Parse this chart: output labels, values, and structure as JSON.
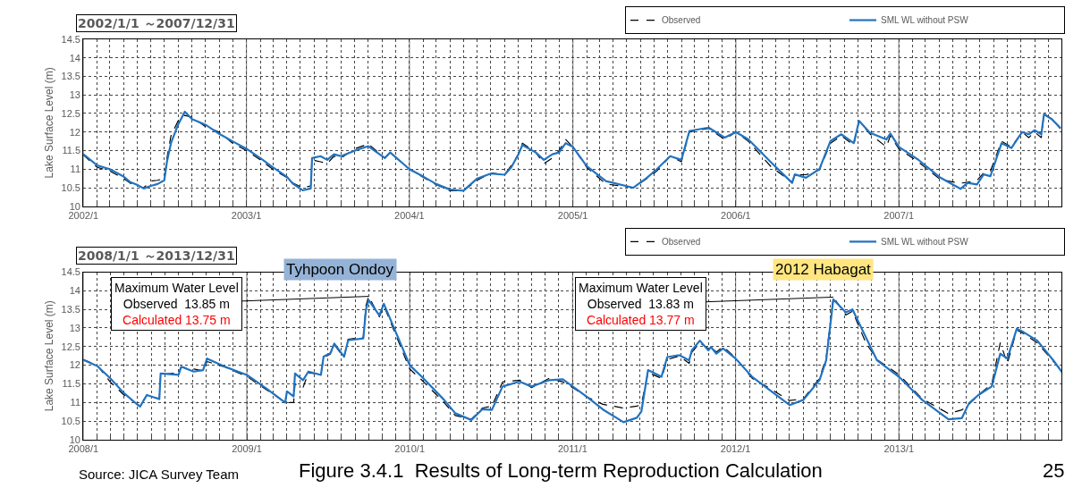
{
  "chart_data": [
    {
      "type": "line",
      "title": "2002/1/1 ～2007/12/31",
      "ylabel": "Lake Surface Level (m)",
      "xlim": [
        "2002-01-01",
        "2008-01-01"
      ],
      "ylim": [
        10,
        14.5
      ],
      "yticks": [
        10,
        10.5,
        11,
        11.5,
        12,
        12.5,
        13,
        13.5,
        14,
        14.5
      ],
      "grid": true,
      "legend": "top right",
      "marker": "none",
      "xticks": [
        {
          "value": "2002-01-01",
          "label": "2002/1"
        },
        {
          "value": "2002-02-01",
          "label": null
        },
        {
          "value": "2002-03-01",
          "label": null
        },
        {
          "value": "2002-04-01",
          "label": null
        },
        {
          "value": "2002-05-01",
          "label": null
        },
        {
          "value": "2002-06-01",
          "label": null
        },
        {
          "value": "2002-07-01",
          "label": null
        },
        {
          "value": "2002-08-01",
          "label": null
        },
        {
          "value": "2002-09-01",
          "label": null
        },
        {
          "value": "2002-10-01",
          "label": null
        },
        {
          "value": "2002-11-01",
          "label": null
        },
        {
          "value": "2002-12-01",
          "label": null
        },
        {
          "value": "2003-01-01",
          "label": "2003/1"
        },
        {
          "value": "2003-02-01",
          "label": null
        },
        {
          "value": "2003-03-01",
          "label": null
        },
        {
          "value": "2003-04-01",
          "label": null
        },
        {
          "value": "2003-05-01",
          "label": null
        },
        {
          "value": "2003-06-01",
          "label": null
        },
        {
          "value": "2003-07-01",
          "label": null
        },
        {
          "value": "2003-08-01",
          "label": null
        },
        {
          "value": "2003-09-01",
          "label": null
        },
        {
          "value": "2003-10-01",
          "label": null
        },
        {
          "value": "2003-11-01",
          "label": null
        },
        {
          "value": "2003-12-01",
          "label": null
        },
        {
          "value": "2004-01-01",
          "label": "2004/1"
        },
        {
          "value": "2004-02-01",
          "label": null
        },
        {
          "value": "2004-03-01",
          "label": null
        },
        {
          "value": "2004-04-01",
          "label": null
        },
        {
          "value": "2004-05-01",
          "label": null
        },
        {
          "value": "2004-06-01",
          "label": null
        },
        {
          "value": "2004-07-01",
          "label": null
        },
        {
          "value": "2004-08-01",
          "label": null
        },
        {
          "value": "2004-09-01",
          "label": null
        },
        {
          "value": "2004-10-01",
          "label": null
        },
        {
          "value": "2004-11-01",
          "label": null
        },
        {
          "value": "2004-12-01",
          "label": null
        },
        {
          "value": "2005-01-01",
          "label": "2005/1"
        },
        {
          "value": "2005-02-01",
          "label": null
        },
        {
          "value": "2005-03-01",
          "label": null
        },
        {
          "value": "2005-04-01",
          "label": null
        },
        {
          "value": "2005-05-01",
          "label": null
        },
        {
          "value": "2005-06-01",
          "label": null
        },
        {
          "value": "2005-07-01",
          "label": null
        },
        {
          "value": "2005-08-01",
          "label": null
        },
        {
          "value": "2005-09-01",
          "label": null
        },
        {
          "value": "2005-10-01",
          "label": null
        },
        {
          "value": "2005-11-01",
          "label": null
        },
        {
          "value": "2005-12-01",
          "label": null
        },
        {
          "value": "2006-01-01",
          "label": "2006/1"
        },
        {
          "value": "2006-02-01",
          "label": null
        },
        {
          "value": "2006-03-01",
          "label": null
        },
        {
          "value": "2006-04-01",
          "label": null
        },
        {
          "value": "2006-05-01",
          "label": null
        },
        {
          "value": "2006-06-01",
          "label": null
        },
        {
          "value": "2006-07-01",
          "label": null
        },
        {
          "value": "2006-08-01",
          "label": null
        },
        {
          "value": "2006-09-01",
          "label": null
        },
        {
          "value": "2006-10-01",
          "label": null
        },
        {
          "value": "2006-11-01",
          "label": null
        },
        {
          "value": "2006-12-01",
          "label": null
        },
        {
          "value": "2007-01-01",
          "label": "2007/1"
        },
        {
          "value": "2007-02-01",
          "label": null
        },
        {
          "value": "2007-03-01",
          "label": null
        },
        {
          "value": "2007-04-01",
          "label": null
        },
        {
          "value": "2007-05-01",
          "label": null
        },
        {
          "value": "2007-06-01",
          "label": null
        },
        {
          "value": "2007-07-01",
          "label": null
        },
        {
          "value": "2007-08-01",
          "label": null
        },
        {
          "value": "2007-09-01",
          "label": null
        },
        {
          "value": "2007-10-01",
          "label": null
        },
        {
          "value": "2007-11-01",
          "label": null
        },
        {
          "value": "2007-12-01",
          "label": null
        }
      ],
      "x": [
        "2002-01-01",
        "2002-02-01",
        "2002-03-01",
        "2002-04-01",
        "2002-04-16",
        "2002-05-01",
        "2002-05-16",
        "2002-06-01",
        "2002-06-16",
        "2002-07-01",
        "2002-07-07",
        "2002-07-16",
        "2002-08-01",
        "2002-08-16",
        "2002-09-01",
        "2002-10-01",
        "2002-11-01",
        "2002-12-01",
        "2003-01-01",
        "2003-02-01",
        "2003-03-01",
        "2003-04-01",
        "2003-04-16",
        "2003-05-07",
        "2003-05-25",
        "2003-05-28",
        "2003-06-16",
        "2003-07-01",
        "2003-07-16",
        "2003-08-01",
        "2003-09-01",
        "2003-10-01",
        "2003-11-07",
        "2003-11-19",
        "2004-01-01",
        "2004-02-01",
        "2004-03-01",
        "2004-04-01",
        "2004-05-01",
        "2004-06-01",
        "2004-07-01",
        "2004-08-01",
        "2004-08-16",
        "2004-09-01",
        "2004-09-10",
        "2004-10-10",
        "2004-10-28",
        "2004-11-16",
        "2004-12-01",
        "2004-12-16",
        "2005-01-01",
        "2005-02-01",
        "2005-03-16",
        "2005-05-16",
        "2005-06-16",
        "2005-07-08",
        "2005-08-07",
        "2005-09-01",
        "2005-09-19",
        "2005-11-01",
        "2005-12-07",
        "2006-01-01",
        "2006-01-29",
        "2006-03-22",
        "2006-05-07",
        "2006-05-13",
        "2006-06-07",
        "2006-07-07",
        "2006-08-01",
        "2006-08-25",
        "2006-09-22",
        "2006-10-04",
        "2006-10-28",
        "2006-12-04",
        "2006-12-13",
        "2007-01-01",
        "2007-02-13",
        "2007-04-04",
        "2007-05-19",
        "2007-06-04",
        "2007-06-25",
        "2007-07-10",
        "2007-07-25",
        "2007-08-19",
        "2007-09-10",
        "2007-10-04",
        "2007-10-19",
        "2007-11-01",
        "2007-11-16",
        "2007-11-22",
        "2007-12-10",
        "2007-12-28"
      ],
      "series": [
        {
          "name": "Observed",
          "color": "#000000",
          "line_style": "dashed",
          "values": [
            11.38,
            11.05,
            10.95,
            10.75,
            10.62,
            10.55,
            10.5,
            10.68,
            10.7,
            10.75,
            11.3,
            11.9,
            12.3,
            12.45,
            12.4,
            12.15,
            12.0,
            11.7,
            11.5,
            11.25,
            11.0,
            10.78,
            10.62,
            10.5,
            10.55,
            11.25,
            11.2,
            11.15,
            11.35,
            11.3,
            11.55,
            11.68,
            11.3,
            11.45,
            11.0,
            10.78,
            10.58,
            10.42,
            10.42,
            10.7,
            10.9,
            10.85,
            11.1,
            11.4,
            11.7,
            11.45,
            11.15,
            11.3,
            11.5,
            11.8,
            11.6,
            11.05,
            10.6,
            10.5,
            10.75,
            10.95,
            11.35,
            11.2,
            12.0,
            12.1,
            11.8,
            12.0,
            11.75,
            11.05,
            10.65,
            10.85,
            10.85,
            10.98,
            11.7,
            11.9,
            11.65,
            12.3,
            11.95,
            11.6,
            11.9,
            11.55,
            11.2,
            10.72,
            10.62,
            10.65,
            10.7,
            10.9,
            10.95,
            11.75,
            11.6,
            12.0,
            11.85,
            12.0,
            11.85,
            12.5,
            12.35,
            12.1
          ]
        },
        {
          "name": "SML WL without PSW",
          "color": "#2173c1",
          "line_style": "solid",
          "values": [
            11.4,
            11.1,
            11.0,
            10.8,
            10.65,
            10.58,
            10.48,
            10.55,
            10.6,
            10.7,
            11.2,
            11.7,
            12.2,
            12.55,
            12.35,
            12.2,
            11.95,
            11.75,
            11.55,
            11.3,
            11.05,
            10.8,
            10.6,
            10.43,
            10.48,
            11.3,
            11.35,
            11.25,
            11.4,
            11.35,
            11.5,
            11.62,
            11.3,
            11.45,
            11.0,
            10.8,
            10.6,
            10.45,
            10.42,
            10.75,
            10.88,
            10.85,
            11.05,
            11.4,
            11.65,
            11.45,
            11.25,
            11.4,
            11.45,
            11.7,
            11.6,
            11.08,
            10.68,
            10.5,
            10.77,
            11.0,
            11.35,
            11.25,
            12.03,
            12.12,
            11.85,
            12.0,
            11.8,
            11.17,
            10.63,
            10.86,
            10.77,
            11.0,
            11.76,
            11.94,
            11.7,
            12.3,
            11.98,
            11.8,
            11.96,
            11.6,
            11.26,
            10.77,
            10.47,
            10.63,
            10.59,
            10.86,
            10.81,
            11.7,
            11.57,
            12.0,
            11.94,
            12.05,
            11.94,
            12.48,
            12.34,
            12.12
          ]
        }
      ]
    },
    {
      "type": "line",
      "title": "2008/1/1 ～2013/12/31",
      "ylabel": "Lake Surface Level (m)",
      "xlim": [
        "2008-01-01",
        "2014-01-01"
      ],
      "ylim": [
        10,
        14.5
      ],
      "yticks": [
        10,
        10.5,
        11,
        11.5,
        12,
        12.5,
        13,
        13.5,
        14,
        14.5
      ],
      "grid": true,
      "legend": "top right",
      "marker": "none",
      "xticks": [
        {
          "value": "2008-01-01",
          "label": "2008/1"
        },
        {
          "value": "2008-02-01",
          "label": null
        },
        {
          "value": "2008-03-01",
          "label": null
        },
        {
          "value": "2008-04-01",
          "label": null
        },
        {
          "value": "2008-05-01",
          "label": null
        },
        {
          "value": "2008-06-01",
          "label": null
        },
        {
          "value": "2008-07-01",
          "label": null
        },
        {
          "value": "2008-08-01",
          "label": null
        },
        {
          "value": "2008-09-01",
          "label": null
        },
        {
          "value": "2008-10-01",
          "label": null
        },
        {
          "value": "2008-11-01",
          "label": null
        },
        {
          "value": "2008-12-01",
          "label": null
        },
        {
          "value": "2009-01-01",
          "label": "2009/1"
        },
        {
          "value": "2009-02-01",
          "label": null
        },
        {
          "value": "2009-03-01",
          "label": null
        },
        {
          "value": "2009-04-01",
          "label": null
        },
        {
          "value": "2009-05-01",
          "label": null
        },
        {
          "value": "2009-06-01",
          "label": null
        },
        {
          "value": "2009-07-01",
          "label": null
        },
        {
          "value": "2009-08-01",
          "label": null
        },
        {
          "value": "2009-09-01",
          "label": null
        },
        {
          "value": "2009-10-01",
          "label": null
        },
        {
          "value": "2009-11-01",
          "label": null
        },
        {
          "value": "2009-12-01",
          "label": null
        },
        {
          "value": "2010-01-01",
          "label": "2010/1"
        },
        {
          "value": "2010-02-01",
          "label": null
        },
        {
          "value": "2010-03-01",
          "label": null
        },
        {
          "value": "2010-04-01",
          "label": null
        },
        {
          "value": "2010-05-01",
          "label": null
        },
        {
          "value": "2010-06-01",
          "label": null
        },
        {
          "value": "2010-07-01",
          "label": null
        },
        {
          "value": "2010-08-01",
          "label": null
        },
        {
          "value": "2010-09-01",
          "label": null
        },
        {
          "value": "2010-10-01",
          "label": null
        },
        {
          "value": "2010-11-01",
          "label": null
        },
        {
          "value": "2010-12-01",
          "label": null
        },
        {
          "value": "2011-01-01",
          "label": "2011/1"
        },
        {
          "value": "2011-02-01",
          "label": null
        },
        {
          "value": "2011-03-01",
          "label": null
        },
        {
          "value": "2011-04-01",
          "label": null
        },
        {
          "value": "2011-05-01",
          "label": null
        },
        {
          "value": "2011-06-01",
          "label": null
        },
        {
          "value": "2011-07-01",
          "label": null
        },
        {
          "value": "2011-08-01",
          "label": null
        },
        {
          "value": "2011-09-01",
          "label": null
        },
        {
          "value": "2011-10-01",
          "label": null
        },
        {
          "value": "2011-11-01",
          "label": null
        },
        {
          "value": "2011-12-01",
          "label": null
        },
        {
          "value": "2012-01-01",
          "label": "2012/1"
        },
        {
          "value": "2012-02-01",
          "label": null
        },
        {
          "value": "2012-03-01",
          "label": null
        },
        {
          "value": "2012-04-01",
          "label": null
        },
        {
          "value": "2012-05-01",
          "label": null
        },
        {
          "value": "2012-06-01",
          "label": null
        },
        {
          "value": "2012-07-01",
          "label": null
        },
        {
          "value": "2012-08-01",
          "label": null
        },
        {
          "value": "2012-09-01",
          "label": null
        },
        {
          "value": "2012-10-01",
          "label": null
        },
        {
          "value": "2012-11-01",
          "label": null
        },
        {
          "value": "2012-12-01",
          "label": null
        },
        {
          "value": "2013-01-01",
          "label": "2013/1"
        },
        {
          "value": "2013-02-01",
          "label": null
        },
        {
          "value": "2013-03-01",
          "label": null
        },
        {
          "value": "2013-04-01",
          "label": null
        },
        {
          "value": "2013-05-01",
          "label": null
        },
        {
          "value": "2013-06-01",
          "label": null
        },
        {
          "value": "2013-07-01",
          "label": null
        },
        {
          "value": "2013-08-01",
          "label": null
        },
        {
          "value": "2013-09-01",
          "label": null
        },
        {
          "value": "2013-10-01",
          "label": null
        },
        {
          "value": "2013-11-01",
          "label": null
        },
        {
          "value": "2013-12-01",
          "label": null
        }
      ],
      "x": [
        "2008-01-01",
        "2008-02-01",
        "2008-03-01",
        "2008-04-01",
        "2008-05-01",
        "2008-05-07",
        "2008-05-22",
        "2008-06-19",
        "2008-06-22",
        "2008-08-01",
        "2008-08-07",
        "2008-09-04",
        "2008-09-25",
        "2008-10-04",
        "2008-11-13",
        "2009-01-01",
        "2009-02-13",
        "2009-03-28",
        "2009-04-01",
        "2009-04-16",
        "2009-04-19",
        "2009-05-07",
        "2009-05-19",
        "2009-06-16",
        "2009-06-22",
        "2009-07-07",
        "2009-07-16",
        "2009-08-07",
        "2009-08-16",
        "2009-09-19",
        "2009-09-25",
        "2009-10-01",
        "2009-10-25",
        "2009-11-04",
        "2010-01-01",
        "2010-01-28",
        "2010-03-19",
        "2010-04-13",
        "2010-05-19",
        "2010-06-13",
        "2010-07-04",
        "2010-07-28",
        "2010-09-04",
        "2010-10-01",
        "2010-11-10",
        "2010-12-10",
        "2011-01-01",
        "2011-02-01",
        "2011-03-10",
        "2011-04-25",
        "2011-05-25",
        "2011-06-04",
        "2011-06-19",
        "2011-07-19",
        "2011-08-01",
        "2011-08-28",
        "2011-09-19",
        "2011-09-25",
        "2011-10-13",
        "2011-11-01",
        "2011-11-07",
        "2011-11-19",
        "2011-12-04",
        "2012-01-01",
        "2012-02-07",
        "2012-03-22",
        "2012-05-01",
        "2012-06-01",
        "2012-07-07",
        "2012-07-22",
        "2012-08-07",
        "2012-09-04",
        "2012-09-19",
        "2012-10-19",
        "2012-11-13",
        "2013-01-01",
        "2013-02-22",
        "2013-04-22",
        "2013-05-22",
        "2013-06-07",
        "2013-06-28",
        "2013-07-28",
        "2013-08-16",
        "2013-09-01",
        "2013-09-22",
        "2013-10-07",
        "2013-11-07",
        "2013-12-13",
        "2014-01-01"
      ],
      "annotations": [
        {
          "text": "Maximum Water Level\nObserved  13.85 m\nCalculated 13.75 m",
          "x": "2009-10-01",
          "y": 13.85
        },
        "Tyhpoon Ondoy",
        {
          "text": "Maximum Water Level\nObserved  13.83 m\nCalculated 13.77 m",
          "x": "2012-08-07",
          "y": 13.83
        },
        "2012 Habagat",
        "Source: JICA Survey Team",
        "Figure 3.4.1  Results of Long-term Reproduction Calculation",
        "25"
      ],
      "series": [
        {
          "name": "Observed",
          "color": "#000000",
          "line_style": "dashed",
          "values": [
            12.15,
            12.0,
            11.55,
            11.2,
            10.95,
            10.92,
            11.2,
            11.1,
            11.75,
            11.8,
            11.95,
            11.9,
            11.85,
            12.1,
            11.95,
            11.7,
            11.35,
            11.0,
            11.0,
            11.0,
            11.5,
            11.4,
            11.8,
            11.75,
            12.2,
            12.3,
            12.55,
            12.2,
            12.7,
            12.75,
            13.6,
            13.85,
            13.3,
            13.6,
            11.9,
            11.6,
            11.0,
            10.65,
            10.55,
            10.85,
            10.9,
            11.55,
            11.6,
            11.4,
            11.65,
            11.55,
            11.4,
            11.15,
            10.95,
            10.85,
            10.9,
            10.95,
            11.8,
            11.65,
            12.15,
            12.25,
            12.05,
            12.35,
            12.6,
            12.45,
            12.5,
            12.35,
            12.5,
            12.2,
            11.65,
            11.35,
            11.05,
            11.1,
            11.65,
            12.2,
            13.83,
            13.35,
            13.45,
            12.6,
            12.15,
            11.75,
            11.1,
            10.7,
            10.8,
            10.95,
            11.2,
            11.5,
            12.6,
            12.05,
            12.95,
            12.85,
            12.6,
            12.1,
            11.85
          ]
        },
        {
          "name": "SML WL without PSW",
          "color": "#2173c1",
          "line_style": "solid",
          "values": [
            12.14,
            11.98,
            11.65,
            11.25,
            10.94,
            10.89,
            11.2,
            11.09,
            11.78,
            11.74,
            11.96,
            11.83,
            11.87,
            12.18,
            11.96,
            11.74,
            11.38,
            11.0,
            11.3,
            11.16,
            11.78,
            11.6,
            11.83,
            11.74,
            12.23,
            12.32,
            12.58,
            12.23,
            12.67,
            12.72,
            13.5,
            13.75,
            13.34,
            13.65,
            12.0,
            11.69,
            11.07,
            10.71,
            10.53,
            10.82,
            10.8,
            11.43,
            11.56,
            11.43,
            11.6,
            11.62,
            11.43,
            11.16,
            10.81,
            10.47,
            10.59,
            10.76,
            11.87,
            11.69,
            12.22,
            12.27,
            12.13,
            12.4,
            12.66,
            12.4,
            12.49,
            12.31,
            12.45,
            12.18,
            11.69,
            11.29,
            10.93,
            11.07,
            11.6,
            12.13,
            13.77,
            13.42,
            13.5,
            12.75,
            12.13,
            11.69,
            11.07,
            10.55,
            10.58,
            10.98,
            11.2,
            11.43,
            12.31,
            12.18,
            12.98,
            12.89,
            12.66,
            12.13,
            11.82
          ]
        }
      ]
    }
  ]
}
